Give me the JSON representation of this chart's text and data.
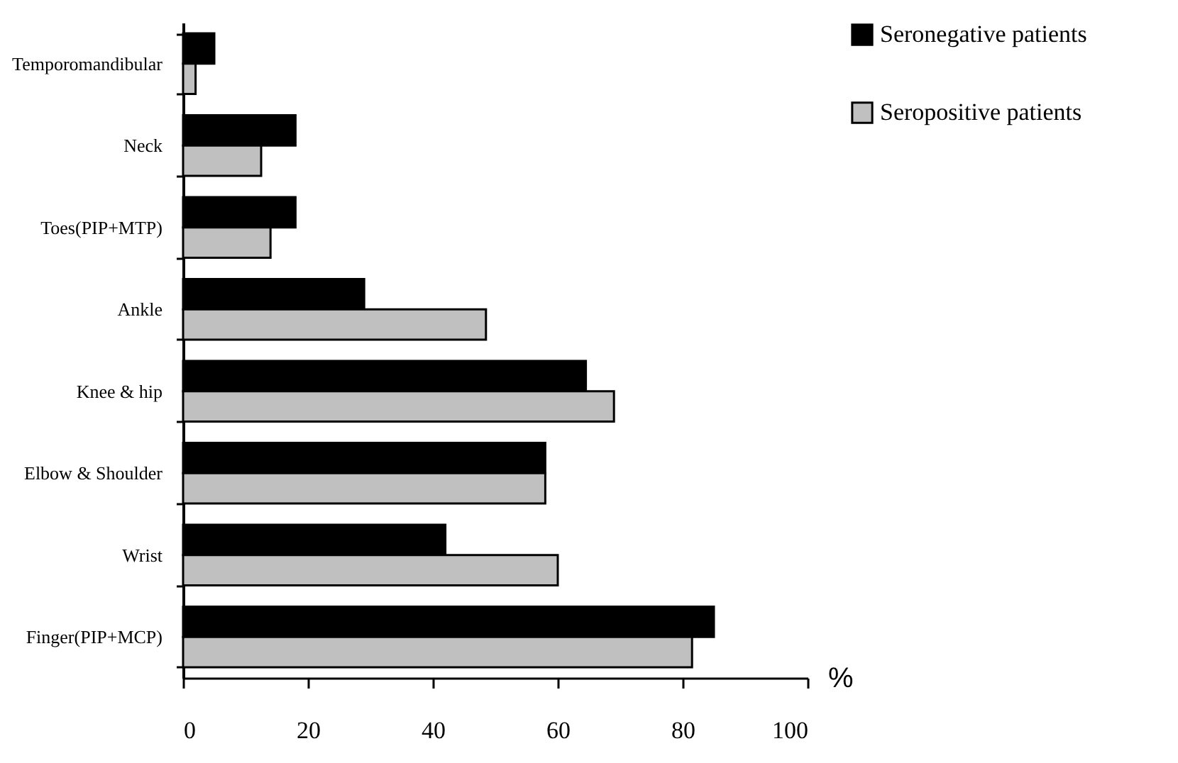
{
  "chart_data": {
    "type": "bar",
    "orientation": "horizontal",
    "xlabel": "%",
    "categories": [
      "Temporomandibular",
      "Neck",
      "Toes(PIP+MTP)",
      "Ankle",
      "Knee & hip",
      "Elbow & Shoulder",
      "Wrist",
      "Finger(PIP+MCP)"
    ],
    "series": [
      {
        "name": "Seronegative patients",
        "color": "#000000",
        "values": [
          5,
          18,
          18,
          29,
          64.5,
          58,
          42,
          85
        ]
      },
      {
        "name": "Seropositive patients",
        "color": "#c0c0c0",
        "values": [
          2,
          12.5,
          14,
          48.5,
          69,
          58,
          60,
          81.5
        ]
      }
    ],
    "xlim": [
      0,
      100
    ],
    "xticks": [
      0,
      20,
      40,
      60,
      80,
      100
    ],
    "grid": false,
    "legend": "right"
  }
}
